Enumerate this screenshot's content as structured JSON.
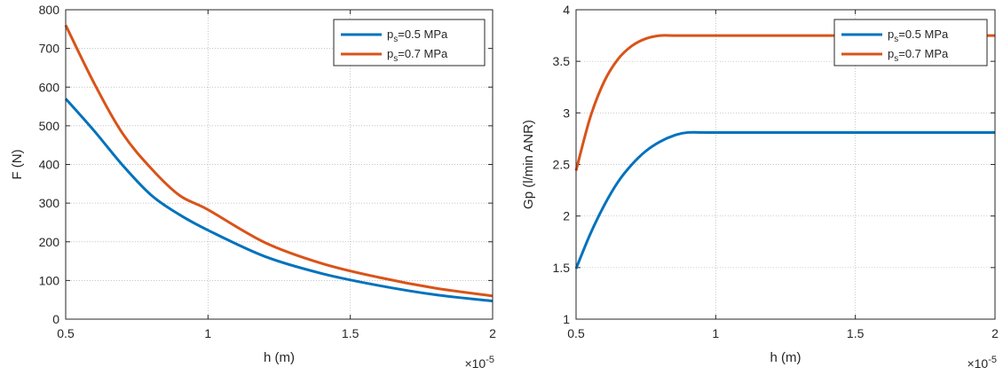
{
  "chart_data": [
    {
      "type": "line",
      "xlabel": "h (m)",
      "ylabel": "F (N)",
      "x_multiplier_label": "×10",
      "x_multiplier_exp": "-5",
      "xlim": [
        0.5,
        2
      ],
      "ylim": [
        0,
        800
      ],
      "xticks": [
        "0.5",
        "1",
        "1.5",
        "2"
      ],
      "yticks": [
        "0",
        "100",
        "200",
        "300",
        "400",
        "500",
        "600",
        "700",
        "800"
      ],
      "grid": true,
      "legend_position": "top-right",
      "x": [
        0.5,
        0.6,
        0.7,
        0.8,
        0.9,
        1.0,
        1.2,
        1.4,
        1.6,
        1.8,
        2.0
      ],
      "series": [
        {
          "legend_prefix": "p",
          "legend_sub": "s",
          "legend_suffix": "=0.5 MPa",
          "color": "#0072BD",
          "values": [
            570,
            487,
            398,
            321,
            270,
            230,
            162,
            118,
            87,
            63,
            47
          ]
        },
        {
          "legend_prefix": "p",
          "legend_sub": "s",
          "legend_suffix": "=0.7 MPa",
          "color": "#D95319",
          "values": [
            760,
            610,
            480,
            390,
            320,
            283,
            198,
            144,
            108,
            80,
            60
          ]
        }
      ]
    },
    {
      "type": "line",
      "xlabel": "h (m)",
      "ylabel": "Gp (l/min ANR)",
      "x_multiplier_label": "×10",
      "x_multiplier_exp": "-5",
      "xlim": [
        0.5,
        2
      ],
      "ylim": [
        1,
        4
      ],
      "xticks": [
        "0.5",
        "1",
        "1.5",
        "2"
      ],
      "yticks": [
        "1",
        "1.5",
        "2",
        "2.5",
        "3",
        "3.5",
        "4"
      ],
      "grid": true,
      "legend_position": "top-right",
      "x": [
        0.5,
        0.55,
        0.6,
        0.65,
        0.7,
        0.75,
        0.8,
        0.85,
        0.9,
        1.0,
        1.5,
        2.0
      ],
      "series": [
        {
          "legend_prefix": "p",
          "legend_sub": "s",
          "legend_suffix": "=0.5 MPa",
          "color": "#0072BD",
          "values": [
            1.49,
            1.82,
            2.1,
            2.33,
            2.5,
            2.63,
            2.72,
            2.78,
            2.81,
            2.81,
            2.81,
            2.81
          ]
        },
        {
          "legend_prefix": "p",
          "legend_sub": "s",
          "legend_suffix": "=0.7 MPa",
          "color": "#D95319",
          "values": [
            2.44,
            2.95,
            3.3,
            3.52,
            3.65,
            3.72,
            3.75,
            3.75,
            3.75,
            3.75,
            3.75,
            3.75
          ]
        }
      ]
    }
  ]
}
